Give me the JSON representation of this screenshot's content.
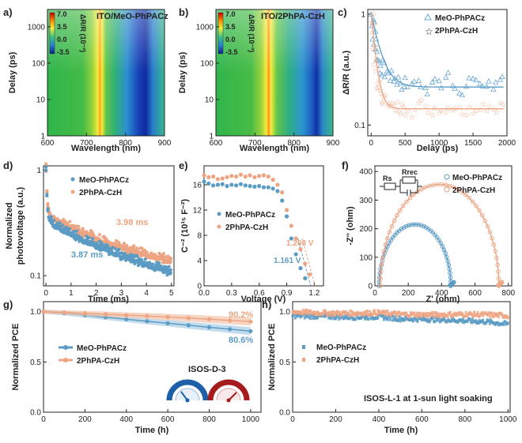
{
  "colors": {
    "blue": "#5b9bc4",
    "orange": "#eda482",
    "blue_light": "#a9cde6",
    "orange_light": "#f2c3a8"
  },
  "chart_data": [
    {
      "panel": "a",
      "type": "heatmap",
      "title": "ITO/MeO-PhPACz",
      "xlabel": "Wavelength (nm)",
      "ylabel": "Delay (ps)",
      "xlim": [
        600,
        900
      ],
      "ylim": [
        1,
        3000
      ],
      "yscale": "log",
      "xticks": [
        "600",
        "700",
        "800",
        "900"
      ],
      "yticks": [
        "1",
        "10",
        "100",
        "1000"
      ],
      "colorbar": {
        "label": "ΔR/R (10⁻³)",
        "ticks": [
          "7.0",
          "3.5",
          "0.0",
          "-3.5"
        ]
      },
      "features": {
        "positive_band_nm": 735,
        "negative_band_nm": 845
      }
    },
    {
      "panel": "b",
      "type": "heatmap",
      "title": "ITO/2PhPA-CzH",
      "xlabel": "Wavelength (nm)",
      "ylabel": "Delay (ps)",
      "xlim": [
        600,
        900
      ],
      "ylim": [
        1,
        3000
      ],
      "yscale": "log",
      "xticks": [
        "600",
        "700",
        "800",
        "900"
      ],
      "yticks": [
        "1",
        "10",
        "100",
        "1000"
      ],
      "colorbar": {
        "label": "ΔR/R (10⁻³)",
        "ticks": [
          "7.0",
          "3.5",
          "0.0",
          "-3.5"
        ]
      },
      "features": {
        "positive_band_nm": 735,
        "negative_band_nm": 850
      }
    },
    {
      "panel": "c",
      "type": "scatter",
      "xlabel": "Delay (ps)",
      "ylabel": "ΔR/R (a.u.)",
      "xlim": [
        -50,
        2000
      ],
      "ylim": [
        0.08,
        1.1
      ],
      "yscale": "log",
      "xticks": [
        "0",
        "500",
        "1000",
        "1500",
        "2000"
      ],
      "yticks": [
        "0.1",
        "1"
      ],
      "series": [
        {
          "name": "MeO-PhPACz",
          "x": [
            0,
            10,
            20,
            40,
            60,
            80,
            100,
            130,
            160,
            200,
            250,
            300,
            350,
            400,
            450,
            500,
            600,
            700,
            800,
            900,
            1000,
            1100,
            1200,
            1300,
            1400,
            1500,
            1600,
            1700,
            1800,
            1900
          ],
          "y": [
            1.0,
            0.85,
            0.68,
            0.55,
            0.46,
            0.42,
            0.38,
            0.34,
            0.32,
            0.3,
            0.28,
            0.27,
            0.26,
            0.25,
            0.24,
            0.24,
            0.23,
            0.24,
            0.22,
            0.25,
            0.22,
            0.27,
            0.23,
            0.21,
            0.24,
            0.23,
            0.22,
            0.26,
            0.23,
            0.24
          ],
          "fit_plateau": 0.22
        },
        {
          "name": "2PhPA-CzH",
          "x": [
            0,
            10,
            20,
            40,
            60,
            80,
            100,
            130,
            160,
            200,
            250,
            300,
            350,
            400,
            450,
            500,
            600,
            700,
            800,
            900,
            1000,
            1100,
            1200,
            1300,
            1400,
            1500,
            1600,
            1700,
            1800,
            1900
          ],
          "y": [
            1.0,
            0.7,
            0.5,
            0.36,
            0.28,
            0.24,
            0.21,
            0.19,
            0.18,
            0.17,
            0.16,
            0.16,
            0.15,
            0.15,
            0.15,
            0.14,
            0.14,
            0.15,
            0.14,
            0.13,
            0.15,
            0.14,
            0.14,
            0.13,
            0.14,
            0.13,
            0.14,
            0.14,
            0.13,
            0.14
          ],
          "fit_plateau": 0.14
        }
      ]
    },
    {
      "panel": "d",
      "type": "scatter",
      "xlabel": "Time (ms)",
      "ylabel": "Normalized photovoltage (a.u.)",
      "xlim": [
        -0.1,
        5.1
      ],
      "ylim": [
        0.08,
        1.1
      ],
      "yscale": "log",
      "xticks": [
        "0",
        "1",
        "2",
        "3",
        "4",
        "5"
      ],
      "yticks": [
        "0.1",
        "1"
      ],
      "series": [
        {
          "name": "MeO-PhPACz",
          "lifetime": "3.87 ms",
          "x": [
            0,
            0.05,
            0.1,
            0.2,
            0.3,
            0.5,
            0.75,
            1,
            1.25,
            1.5,
            1.75,
            2,
            2.25,
            2.5,
            2.75,
            3,
            3.25,
            3.5,
            3.75,
            4,
            4.25,
            4.5,
            4.75,
            5
          ],
          "y": [
            1.0,
            0.45,
            0.36,
            0.32,
            0.3,
            0.28,
            0.26,
            0.24,
            0.23,
            0.21,
            0.2,
            0.19,
            0.18,
            0.17,
            0.16,
            0.15,
            0.145,
            0.14,
            0.13,
            0.125,
            0.12,
            0.115,
            0.11,
            0.105
          ]
        },
        {
          "name": "2PhPA-CzH",
          "lifetime": "3.98 ms",
          "x": [
            0,
            0.05,
            0.1,
            0.2,
            0.3,
            0.5,
            0.75,
            1,
            1.25,
            1.5,
            1.75,
            2,
            2.25,
            2.5,
            2.75,
            3,
            3.25,
            3.5,
            3.75,
            4,
            4.25,
            4.5,
            4.75,
            5
          ],
          "y": [
            1.0,
            0.5,
            0.4,
            0.36,
            0.34,
            0.32,
            0.3,
            0.28,
            0.26,
            0.25,
            0.24,
            0.22,
            0.21,
            0.2,
            0.19,
            0.18,
            0.175,
            0.17,
            0.16,
            0.155,
            0.15,
            0.145,
            0.14,
            0.135
          ]
        }
      ]
    },
    {
      "panel": "e",
      "type": "scatter",
      "xlabel": "Voltage (V)",
      "ylabel": "C⁻² (10¹⁵ F⁻²)",
      "xlim": [
        0,
        1.3
      ],
      "ylim": [
        0,
        19
      ],
      "xticks": [
        "0.0",
        "0.3",
        "0.6",
        "0.9",
        "1.2"
      ],
      "yticks": [
        "0",
        "4",
        "8",
        "12",
        "16"
      ],
      "series": [
        {
          "name": "MeO-PhPACz",
          "vbi": "1.161 V",
          "x": [
            0,
            0.05,
            0.1,
            0.15,
            0.2,
            0.25,
            0.3,
            0.35,
            0.4,
            0.45,
            0.5,
            0.55,
            0.6,
            0.65,
            0.7,
            0.75,
            0.8,
            0.85,
            0.9,
            0.95,
            1.0,
            1.05,
            1.1
          ],
          "y": [
            16.5,
            16.2,
            15.9,
            16.0,
            16.1,
            15.8,
            16.0,
            15.9,
            16.1,
            15.9,
            15.8,
            15.7,
            15.8,
            15.6,
            15.6,
            15.4,
            15.0,
            13.5,
            11.0,
            7.5,
            5.0,
            2.8,
            1.2
          ]
        },
        {
          "name": "2PhPA-CzH",
          "vbi": "1.208 V",
          "x": [
            0,
            0.05,
            0.1,
            0.15,
            0.2,
            0.25,
            0.3,
            0.35,
            0.4,
            0.45,
            0.5,
            0.55,
            0.6,
            0.65,
            0.7,
            0.75,
            0.8,
            0.85,
            0.9,
            0.95,
            1.0,
            1.05,
            1.1,
            1.15
          ],
          "y": [
            17.5,
            17.2,
            17.3,
            16.9,
            17.0,
            17.2,
            17.4,
            17.3,
            17.6,
            17.3,
            17.5,
            17.2,
            17.4,
            17.5,
            17.3,
            16.8,
            16.0,
            14.8,
            12.0,
            9.5,
            7.5,
            5.8,
            3.5,
            1.8
          ]
        }
      ]
    },
    {
      "panel": "f",
      "type": "scatter",
      "xlabel": "Z' (ohm)",
      "ylabel": "-Z'' (ohm)",
      "xlim": [
        0,
        820
      ],
      "ylim": [
        0,
        420
      ],
      "xticks": [
        "0",
        "200",
        "400",
        "600",
        "800"
      ],
      "yticks": [
        "0",
        "100",
        "200",
        "300",
        "400"
      ],
      "inset": {
        "labels": [
          "Rs",
          "Rrec"
        ]
      },
      "series": [
        {
          "name": "MeO-PhPACz",
          "center": 240,
          "radius": 215
        },
        {
          "name": "2PhPA-CzH",
          "center": 388,
          "radius": 355
        }
      ]
    },
    {
      "panel": "g",
      "type": "line",
      "xlabel": "Time (h)",
      "ylabel": "Normalized PCE",
      "xlim": [
        0,
        1050
      ],
      "ylim": [
        0,
        1.1
      ],
      "xticks": [
        "0",
        "200",
        "400",
        "600",
        "800",
        "1000"
      ],
      "yticks": [
        "0.0",
        "0.5",
        "1.0"
      ],
      "annotation": "ISOS-D-3",
      "series": [
        {
          "name": "MeO-PhPACz",
          "x": [
            0,
            100,
            200,
            300,
            400,
            500,
            600,
            700,
            800,
            900,
            1000
          ],
          "y": [
            1.0,
            0.985,
            0.965,
            0.945,
            0.925,
            0.905,
            0.885,
            0.865,
            0.845,
            0.826,
            0.806
          ],
          "end_label": "80.6%"
        },
        {
          "name": "2PhPA-CzH",
          "x": [
            0,
            100,
            200,
            300,
            400,
            500,
            600,
            700,
            800,
            900,
            1000
          ],
          "y": [
            1.0,
            0.992,
            0.984,
            0.975,
            0.966,
            0.957,
            0.947,
            0.937,
            0.925,
            0.913,
            0.902
          ],
          "end_label": "90.2%"
        }
      ]
    },
    {
      "panel": "h",
      "type": "scatter",
      "xlabel": "Time (h)",
      "ylabel": "Normalized PCE",
      "xlim": [
        0,
        1010
      ],
      "ylim": [
        0,
        1.1
      ],
      "xticks": [
        "0",
        "200",
        "400",
        "600",
        "800",
        "1000"
      ],
      "yticks": [
        "0.0",
        "0.5",
        "1.0"
      ],
      "annotation": "ISOS-L-1 at 1-sun light soaking",
      "series": [
        {
          "name": "MeO-PhPACz",
          "x": [
            0,
            100,
            200,
            300,
            400,
            500,
            600,
            700,
            800,
            900,
            1000
          ],
          "y": [
            0.96,
            0.955,
            0.95,
            0.945,
            0.95,
            0.93,
            0.925,
            0.92,
            0.91,
            0.9,
            0.875
          ]
        },
        {
          "name": "2PhPA-CzH",
          "x": [
            0,
            100,
            200,
            300,
            400,
            500,
            600,
            700,
            800,
            900,
            1000
          ],
          "y": [
            1.0,
            0.99,
            0.985,
            0.985,
            0.99,
            0.975,
            0.97,
            0.97,
            0.975,
            0.97,
            0.96
          ]
        }
      ]
    }
  ]
}
